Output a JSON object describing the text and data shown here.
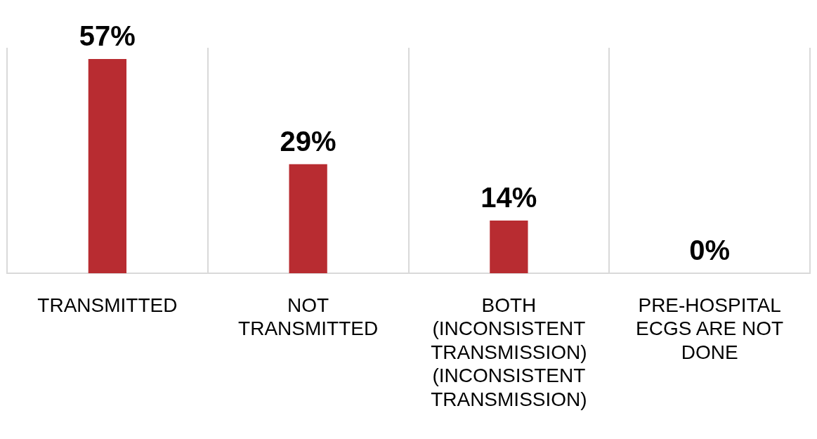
{
  "chart_data": {
    "type": "bar",
    "categories": [
      "TRANSMITTED",
      "NOT TRANSMITTED",
      "BOTH (INCONSISTENT TRANSMISSION) (INCONSISTENT TRANSMISSION)",
      "PRE-HOSPITAL ECGS ARE NOT DONE"
    ],
    "values": [
      57,
      29,
      14,
      0
    ],
    "value_labels": [
      "57%",
      "29%",
      "14%",
      "0%"
    ],
    "color": "#b82c31",
    "grid": "x",
    "tick_labels": "x",
    "legend": false
  }
}
